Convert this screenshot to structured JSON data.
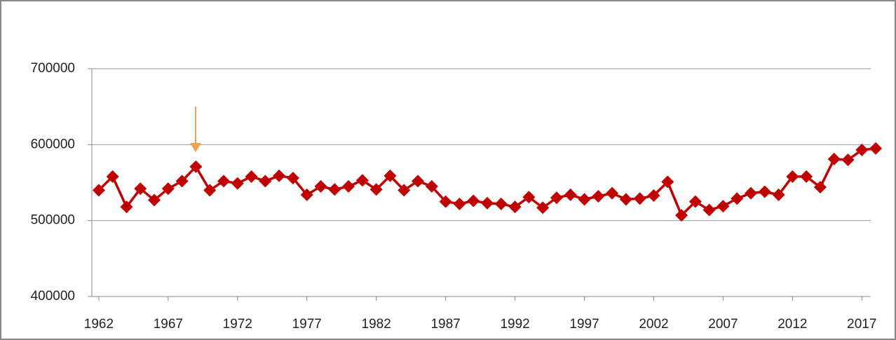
{
  "chart_data": {
    "type": "line",
    "x": [
      1962,
      1963,
      1964,
      1965,
      1966,
      1967,
      1968,
      1969,
      1970,
      1971,
      1972,
      1973,
      1974,
      1975,
      1976,
      1977,
      1978,
      1979,
      1980,
      1981,
      1982,
      1983,
      1984,
      1985,
      1986,
      1987,
      1988,
      1989,
      1990,
      1991,
      1992,
      1993,
      1994,
      1995,
      1996,
      1997,
      1998,
      1999,
      2000,
      2001,
      2002,
      2003,
      2004,
      2005,
      2006,
      2007,
      2008,
      2009,
      2010,
      2011,
      2012,
      2013,
      2014,
      2015,
      2016,
      2017,
      2018
    ],
    "series": [
      {
        "color": "#c00000",
        "values": [
          540000,
          558000,
          518000,
          542000,
          527000,
          542000,
          552000,
          571000,
          540000,
          552000,
          549000,
          558000,
          552000,
          559000,
          556000,
          534000,
          545000,
          541000,
          545000,
          553000,
          541000,
          559000,
          540000,
          552000,
          545000,
          525000,
          522000,
          526000,
          523000,
          522000,
          518000,
          531000,
          517000,
          530000,
          534000,
          528000,
          532000,
          536000,
          528000,
          529000,
          533000,
          551000,
          507000,
          525000,
          514000,
          519000,
          529000,
          536000,
          538000,
          534000,
          558000,
          558000,
          544000,
          581000,
          580000,
          593000,
          595000
        ]
      }
    ],
    "xlim": [
      1961.5,
      2018.5
    ],
    "xticks": [
      1962,
      1967,
      1972,
      1977,
      1982,
      1987,
      1992,
      1997,
      2002,
      2007,
      2012,
      2017
    ],
    "ylim": [
      400000,
      700000
    ],
    "yticks": [
      400000,
      500000,
      600000,
      700000
    ],
    "grid": true
  }
}
